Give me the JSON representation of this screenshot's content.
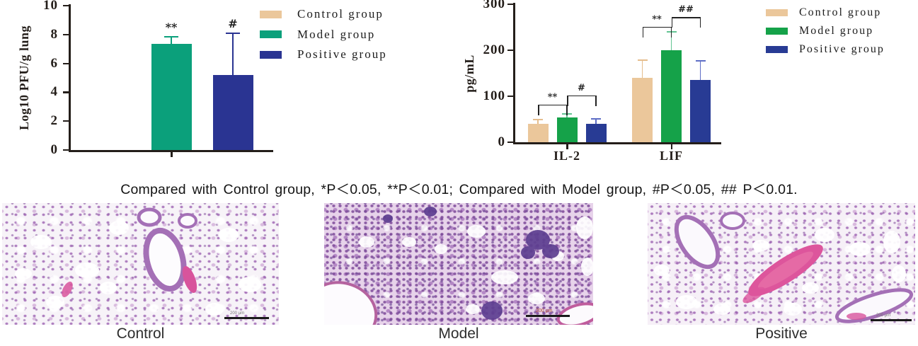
{
  "caption": {
    "text": "Compared with Control group, *P＜0.05, **P＜0.01; Compared with Model group, #P＜0.05, ## P＜0.01."
  },
  "chart_data": [
    {
      "type": "bar",
      "title": "",
      "xlabel": "",
      "ylabel": "Log10 PFU/g lung",
      "ylim": [
        0,
        10
      ],
      "yticks": [
        0,
        2,
        4,
        6,
        8,
        10
      ],
      "categories": [
        ""
      ],
      "grid": false,
      "legend_position": "right",
      "series": [
        {
          "name": "Control group",
          "color": "#EBC79B",
          "err_color": "#EBC79B",
          "values": [
            0
          ],
          "errors": [
            0
          ]
        },
        {
          "name": "Model group",
          "color": "#0BA07B",
          "err_color": "#0BA07B",
          "values": [
            7.35
          ],
          "errors": [
            0.5
          ]
        },
        {
          "name": "Positive group",
          "color": "#2A3492",
          "err_color": "#2A3492",
          "values": [
            5.2
          ],
          "errors": [
            2.9
          ]
        }
      ],
      "annotations": [
        {
          "type": "text",
          "label": "**",
          "category_index": 0,
          "series_index": 1
        },
        {
          "type": "text",
          "label": "#",
          "category_index": 0,
          "series_index": 2
        }
      ]
    },
    {
      "type": "bar",
      "title": "",
      "xlabel": "",
      "ylabel": "pg/mL",
      "ylim": [
        0,
        300
      ],
      "yticks": [
        0,
        100,
        200,
        300
      ],
      "categories": [
        "IL-2",
        "LIF"
      ],
      "grid": false,
      "legend_position": "right",
      "series": [
        {
          "name": "Control group",
          "color": "#EBC79B",
          "err_color": "#E5BD8D",
          "values": [
            40,
            140
          ],
          "errors": [
            10,
            38
          ]
        },
        {
          "name": "Model group",
          "color": "#15A249",
          "err_color": "#63C493",
          "values": [
            54,
            200
          ],
          "errors": [
            8,
            40
          ]
        },
        {
          "name": "Positive group",
          "color": "#283B94",
          "err_color": "#5E6EC6",
          "values": [
            40,
            135
          ],
          "errors": [
            11,
            42
          ]
        }
      ],
      "annotations": [
        {
          "type": "bracket",
          "label": "**",
          "category_index": 0,
          "from_series": 0,
          "to_series": 1,
          "y": 82
        },
        {
          "type": "bracket",
          "label": "#",
          "category_index": 0,
          "from_series": 1,
          "to_series": 2,
          "y": 102
        },
        {
          "type": "bracket",
          "label": "**",
          "category_index": 1,
          "from_series": 0,
          "to_series": 1,
          "y": 251
        },
        {
          "type": "bracket",
          "label": "##",
          "category_index": 1,
          "from_series": 1,
          "to_series": 2,
          "y": 272
        }
      ]
    }
  ],
  "histology": {
    "panels": [
      {
        "label": "Control",
        "scale_label": "200 μm"
      },
      {
        "label": "Model",
        "scale_label": "200 μm"
      },
      {
        "label": "Positive",
        "scale_label": "200 μm"
      }
    ]
  }
}
